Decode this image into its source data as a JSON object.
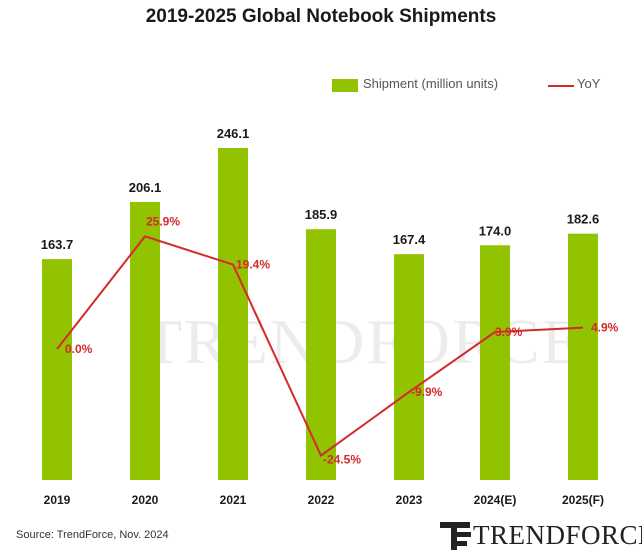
{
  "chart_data": {
    "type": "bar",
    "title": "2019-2025 Global Notebook Shipments",
    "categories": [
      "2019",
      "2020",
      "2021",
      "2022",
      "2023",
      "2024(E)",
      "2025(F)"
    ],
    "series": [
      {
        "name": "Shipment (million units)",
        "type": "bar",
        "axis": "left",
        "color": "#92c300",
        "values": [
          163.7,
          206.1,
          246.1,
          185.9,
          167.4,
          174.0,
          182.6
        ],
        "labels": [
          "163.7",
          "206.1",
          "246.1",
          "185.9",
          "167.4",
          "174.0",
          "182.6"
        ]
      },
      {
        "name": "YoY",
        "type": "line",
        "axis": "right",
        "color": "#d42a2a",
        "values": [
          0.0,
          25.9,
          19.4,
          -24.5,
          -9.9,
          3.9,
          4.9
        ],
        "labels": [
          "0.0%",
          "25.9%",
          "19.4%",
          "-24.5%",
          "-9.9%",
          "3.9%",
          "4.9%"
        ]
      }
    ],
    "ylim": [
      0,
      250
    ],
    "y2lim": [
      -28,
      50
    ],
    "grid": false,
    "legend": "top-right"
  },
  "source": "Source: TrendForce, Nov. 2024",
  "logo": {
    "text": "TRENDFORCE"
  },
  "watermark": {
    "text": "TRENDFORCE"
  }
}
